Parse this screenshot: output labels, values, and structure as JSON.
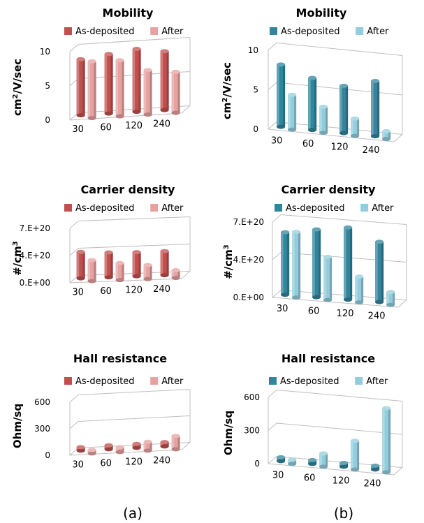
{
  "panel_labels": [
    "(a)",
    "(b)"
  ],
  "chart_data": [
    {
      "type": "bar",
      "title": "Mobility",
      "ylabel": "cm2/V/sec",
      "yticks": [
        "0",
        "5",
        "10"
      ],
      "ylim": [
        0,
        10
      ],
      "categories": [
        "30",
        "60",
        "120",
        "240"
      ],
      "series": [
        {
          "name": "As-deposited",
          "color": "#c0504d",
          "values": [
            8.2,
            8.7,
            9.2,
            8.6
          ]
        },
        {
          "name": "After",
          "color": "#e6a1a0",
          "values": [
            8.3,
            8.2,
            6.5,
            6.0
          ]
        }
      ],
      "legend": "top"
    },
    {
      "type": "bar",
      "title": "Mobility",
      "ylabel": "cm2/V/sec",
      "yticks": [
        "0",
        "5",
        "10"
      ],
      "ylim": [
        0,
        10
      ],
      "categories": [
        "30",
        "60",
        "120",
        "240"
      ],
      "series": [
        {
          "name": "As-deposited",
          "color": "#31859c",
          "values": [
            7.9,
            6.6,
            6.0,
            7.0
          ]
        },
        {
          "name": "After",
          "color": "#93cddd",
          "values": [
            4.4,
            3.3,
            2.2,
            1.0
          ]
        }
      ],
      "legend": "top"
    },
    {
      "type": "bar",
      "title": "Carrier density",
      "ylabel": "#/cm3",
      "yticks": [
        "0.E+00",
        "4.E+20",
        "7.E+20"
      ],
      "ylim": [
        0,
        7e+20
      ],
      "categories": [
        "30",
        "60",
        "120",
        "240"
      ],
      "series": [
        {
          "name": "As-deposited",
          "color": "#c0504d",
          "values": [
            3.4e+20,
            3.2e+20,
            3.1e+20,
            3.1e+20
          ]
        },
        {
          "name": "After",
          "color": "#e6a1a0",
          "values": [
            2.7e+20,
            2.2e+20,
            1.8e+20,
            1e+20
          ]
        }
      ],
      "legend": "top"
    },
    {
      "type": "bar",
      "title": "Carrier density",
      "ylabel": "#/cm3",
      "yticks": [
        "0.E+00",
        "4.E+20",
        "7.E+20"
      ],
      "ylim": [
        0,
        7e+20
      ],
      "categories": [
        "30",
        "60",
        "120",
        "240"
      ],
      "series": [
        {
          "name": "As-deposited",
          "color": "#31859c",
          "values": [
            5.8e+20,
            6.3e+20,
            6.7e+20,
            5.6e+20
          ]
        },
        {
          "name": "After",
          "color": "#93cddd",
          "values": [
            6.1e+20,
            4e+20,
            2.4e+20,
            1.2e+20
          ]
        }
      ],
      "legend": "top"
    },
    {
      "type": "bar",
      "title": "Hall resistance",
      "ylabel": "Ohm/sq",
      "yticks": [
        "0",
        "300",
        "600"
      ],
      "ylim": [
        0,
        600
      ],
      "categories": [
        "30",
        "60",
        "120",
        "240"
      ],
      "series": [
        {
          "name": "As-deposited",
          "color": "#c0504d",
          "values": [
            40,
            45,
            45,
            50
          ]
        },
        {
          "name": "After",
          "color": "#e6a1a0",
          "values": [
            40,
            55,
            100,
            150
          ]
        }
      ],
      "legend": "top"
    },
    {
      "type": "bar",
      "title": "Hall resistance",
      "ylabel": "Ohm/sq",
      "yticks": [
        "0",
        "300",
        "600"
      ],
      "ylim": [
        0,
        600
      ],
      "categories": [
        "30",
        "60",
        "120",
        "240"
      ],
      "series": [
        {
          "name": "As-deposited",
          "color": "#31859c",
          "values": [
            35,
            35,
            35,
            35
          ]
        },
        {
          "name": "After",
          "color": "#93cddd",
          "values": [
            40,
            120,
            260,
            580
          ]
        }
      ],
      "legend": "top"
    }
  ]
}
